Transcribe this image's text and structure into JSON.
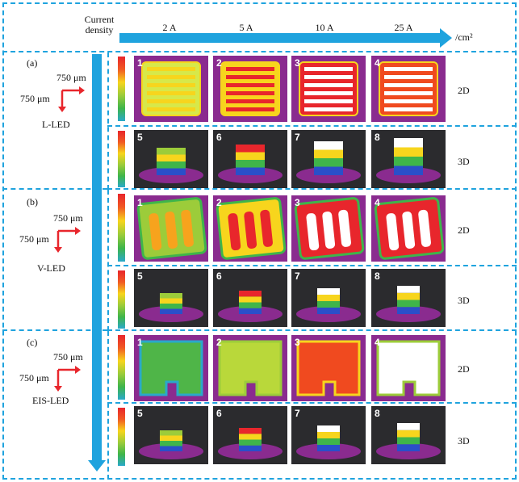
{
  "header": {
    "current_label_line1": "Current",
    "current_label_line2": "density",
    "unit": "/cm²",
    "columns": [
      "2 A",
      "5 A",
      "10 A",
      "25 A"
    ]
  },
  "rows": [
    {
      "panel": "(a)",
      "name": "L-LED",
      "scale_x": "750 μm",
      "scale_y": "750 μm",
      "view_2d": "2D",
      "view_3d": "3D",
      "labels_2d": [
        "1",
        "2",
        "3",
        "4"
      ],
      "labels_3d": [
        "5",
        "6",
        "7",
        "8"
      ]
    },
    {
      "panel": "(b)",
      "name": "V-LED",
      "scale_x": "750 μm",
      "scale_y": "750 μm",
      "view_2d": "2D",
      "view_3d": "3D",
      "labels_2d": [
        "1",
        "2",
        "3",
        "4"
      ],
      "labels_3d": [
        "5",
        "6",
        "7",
        "8"
      ]
    },
    {
      "panel": "(c)",
      "name": "EIS-LED",
      "scale_x": "750 μm",
      "scale_y": "750 μm",
      "view_2d": "2D",
      "view_3d": "3D",
      "labels_2d": [
        "1",
        "2",
        "3",
        "4"
      ],
      "labels_3d": [
        "5",
        "6",
        "7",
        "8"
      ]
    }
  ],
  "colors": {
    "accent": "#1fa3de",
    "arrow_red": "#e8262c",
    "image_bg": "#8a2b8f",
    "dark_bg": "#2b2b2e"
  }
}
